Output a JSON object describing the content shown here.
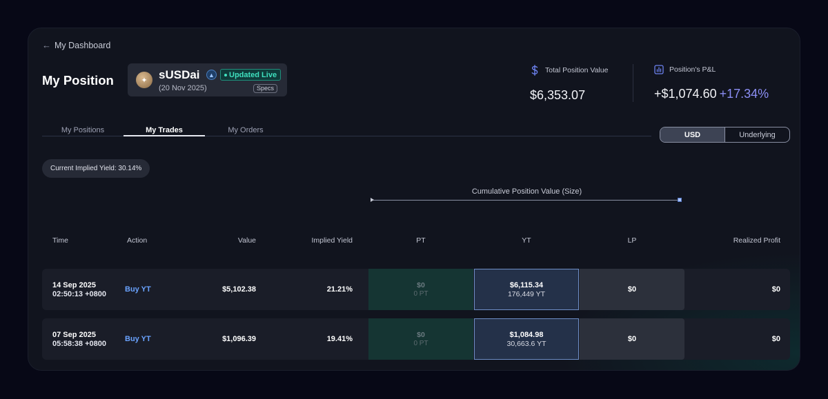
{
  "header": {
    "back_label": "My Dashboard",
    "title": "My Position"
  },
  "asset": {
    "name": "sUSDai",
    "live_label": "Updated Live",
    "maturity": "(20 Nov 2025)",
    "specs_label": "Specs"
  },
  "stats": {
    "total_label": "Total Position Value",
    "total_value": "$6,353.07",
    "pnl_label": "Position's P&L",
    "pnl_value": "+$1,074.60",
    "pnl_pct": "+17.34%"
  },
  "tabs": [
    {
      "label": "My Positions",
      "active": false
    },
    {
      "label": "My Trades",
      "active": true
    },
    {
      "label": "My Orders",
      "active": false
    }
  ],
  "currency_toggle": {
    "options": [
      "USD",
      "Underlying"
    ],
    "selected": "USD"
  },
  "implied_yield_pill": "Current Implied Yield: 30.14%",
  "cumulative_label": "Cumulative Position Value (Size)",
  "columns": [
    "Time",
    "Action",
    "Value",
    "Implied Yield",
    "PT",
    "YT",
    "LP",
    "Realized Profit"
  ],
  "rows": [
    {
      "date": "14 Sep 2025",
      "time": "02:50:13 +0800",
      "action": "Buy YT",
      "value": "$5,102.38",
      "implied_yield": "21.21%",
      "pt_usd": "$0",
      "pt_units": "0 PT",
      "yt_usd": "$6,115.34",
      "yt_units": "176,449 YT",
      "lp": "$0",
      "realized_profit": "$0"
    },
    {
      "date": "07 Sep 2025",
      "time": "05:58:38 +0800",
      "action": "Buy YT",
      "value": "$1,096.39",
      "implied_yield": "19.41%",
      "pt_usd": "$0",
      "pt_units": "0 PT",
      "yt_usd": "$1,084.98",
      "yt_units": "30,663.6 YT",
      "lp": "$0",
      "realized_profit": "$0"
    }
  ],
  "colors": {
    "accent_blue": "#6aa3ff",
    "live_green": "#3fe0bf",
    "pnl_purple": "#8c8ff5"
  }
}
